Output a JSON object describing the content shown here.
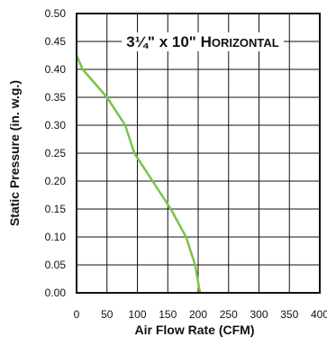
{
  "chart_data": {
    "type": "line",
    "title_parts": [
      "3¼\" x 10\" H",
      "ORIZONTAL"
    ],
    "xlabel": "Air Flow Rate (CFM)",
    "ylabel": "Static Pressure (in. w.g.)",
    "xlim": [
      0,
      400
    ],
    "ylim": [
      0,
      0.5
    ],
    "x_ticks": [
      0,
      50,
      100,
      150,
      200,
      250,
      300,
      350,
      400
    ],
    "y_ticks": [
      0.0,
      0.05,
      0.1,
      0.15,
      0.2,
      0.25,
      0.3,
      0.35,
      0.4,
      0.45,
      0.5
    ],
    "x_tick_labels": [
      "0",
      "50",
      "100",
      "150",
      "200",
      "250",
      "300",
      "350",
      "400"
    ],
    "y_tick_labels": [
      "0.00",
      "0.05",
      "0.10",
      "0.15",
      "0.20",
      "0.25",
      "0.30",
      "0.35",
      "0.40",
      "0.45",
      "0.50"
    ],
    "grid": true,
    "line_color": "#7dc242",
    "series": [
      {
        "x": [
          0,
          10,
          50,
          80,
          95,
          125,
          155,
          180,
          195,
          203
        ],
        "y": [
          0.425,
          0.4,
          0.35,
          0.3,
          0.25,
          0.2,
          0.15,
          0.1,
          0.05,
          0.0
        ]
      }
    ]
  }
}
